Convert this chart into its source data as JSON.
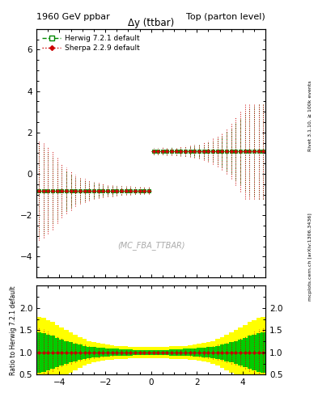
{
  "title_left": "1960 GeV ppbar",
  "title_right": "Top (parton level)",
  "plot_title": "Δy (t̄tbar)",
  "ylabel_ratio": "Ratio to Herwig 7.2.1 default",
  "watermark": "(MC_FBA_TTBAR)",
  "right_label": "Rivet 3.1.10, ≥ 100k events",
  "right_label2": "mcplots.cern.ch [arXiv:1306.3436]",
  "xlim": [
    -5.0,
    5.0
  ],
  "ylim_main": [
    -5.0,
    7.0
  ],
  "ylim_ratio": [
    0.5,
    2.5
  ],
  "yticks_main": [
    -4,
    -2,
    0,
    2,
    4,
    6
  ],
  "yticks_ratio": [
    0.5,
    1.0,
    1.5,
    2.0
  ],
  "xticks": [
    -4,
    -2,
    0,
    2,
    4
  ],
  "herwig_color": "#008800",
  "sherpa_color": "#cc0000",
  "sherpa_fill_color": "#ff9999",
  "herwig_label": "Herwig 7.2.1 default",
  "sherpa_label": "Sherpa 2.2.9 default",
  "band_color_green": "#00bb00",
  "band_color_yellow": "#ffff00",
  "bg_color": "#ffffff",
  "x_edges": [
    -5.0,
    -4.8,
    -4.6,
    -4.4,
    -4.2,
    -4.0,
    -3.8,
    -3.6,
    -3.4,
    -3.2,
    -3.0,
    -2.8,
    -2.6,
    -2.4,
    -2.2,
    -2.0,
    -1.8,
    -1.6,
    -1.4,
    -1.2,
    -1.0,
    -0.8,
    -0.6,
    -0.4,
    -0.2,
    0.0,
    0.2,
    0.4,
    0.6,
    0.8,
    1.0,
    1.2,
    1.4,
    1.6,
    1.8,
    2.0,
    2.2,
    2.4,
    2.6,
    2.8,
    3.0,
    3.2,
    3.4,
    3.6,
    3.8,
    4.0,
    4.2,
    4.4,
    4.6,
    4.8,
    5.0
  ],
  "herwig_vals": [
    -0.8,
    -0.8,
    -0.8,
    -0.8,
    -0.8,
    -0.8,
    -0.8,
    -0.8,
    -0.8,
    -0.8,
    -0.8,
    -0.8,
    -0.8,
    -0.8,
    -0.8,
    -0.8,
    -0.8,
    -0.8,
    -0.8,
    -0.8,
    -0.8,
    -0.8,
    -0.8,
    -0.8,
    -0.8,
    1.1,
    1.1,
    1.1,
    1.1,
    1.1,
    1.1,
    1.1,
    1.1,
    1.1,
    1.1,
    1.1,
    1.1,
    1.1,
    1.1,
    1.1,
    1.1,
    1.1,
    1.1,
    1.1,
    1.1,
    1.1,
    1.1,
    1.1,
    1.1,
    1.1
  ],
  "herwig_errs": [
    2.2,
    2.1,
    1.9,
    1.6,
    1.4,
    1.1,
    0.95,
    0.8,
    0.65,
    0.55,
    0.48,
    0.42,
    0.37,
    0.33,
    0.3,
    0.27,
    0.25,
    0.23,
    0.21,
    0.19,
    0.18,
    0.17,
    0.16,
    0.15,
    0.15,
    0.15,
    0.15,
    0.16,
    0.17,
    0.18,
    0.19,
    0.21,
    0.23,
    0.25,
    0.27,
    0.3,
    0.35,
    0.42,
    0.52,
    0.62,
    0.75,
    0.95,
    1.1,
    1.4,
    1.6,
    1.9,
    2.1,
    2.2,
    2.3,
    2.3
  ],
  "sherpa_vals": [
    -0.8,
    -0.8,
    -0.8,
    -0.8,
    -0.8,
    -0.8,
    -0.8,
    -0.8,
    -0.8,
    -0.8,
    -0.8,
    -0.8,
    -0.8,
    -0.8,
    -0.8,
    -0.8,
    -0.8,
    -0.8,
    -0.8,
    -0.8,
    -0.8,
    -0.8,
    -0.8,
    -0.8,
    -0.8,
    1.1,
    1.1,
    1.1,
    1.1,
    1.1,
    1.1,
    1.1,
    1.1,
    1.1,
    1.1,
    1.1,
    1.1,
    1.1,
    1.1,
    1.1,
    1.1,
    1.1,
    1.1,
    1.1,
    1.1,
    1.1,
    1.1,
    1.1,
    1.1,
    1.1
  ],
  "sherpa_errs": [
    2.4,
    2.3,
    2.1,
    1.9,
    1.6,
    1.3,
    1.1,
    0.95,
    0.75,
    0.65,
    0.55,
    0.48,
    0.42,
    0.37,
    0.33,
    0.3,
    0.28,
    0.25,
    0.23,
    0.21,
    0.2,
    0.19,
    0.18,
    0.17,
    0.17,
    0.17,
    0.17,
    0.18,
    0.19,
    0.2,
    0.21,
    0.23,
    0.25,
    0.28,
    0.31,
    0.35,
    0.42,
    0.52,
    0.62,
    0.75,
    0.9,
    1.1,
    1.35,
    1.65,
    1.95,
    2.3,
    2.3,
    2.3,
    2.3,
    2.3
  ],
  "ratio_errs_stat": [
    0.55,
    0.52,
    0.47,
    0.42,
    0.37,
    0.32,
    0.28,
    0.25,
    0.22,
    0.19,
    0.17,
    0.15,
    0.13,
    0.11,
    0.095,
    0.082,
    0.072,
    0.063,
    0.056,
    0.051,
    0.047,
    0.044,
    0.042,
    0.041,
    0.04,
    0.04,
    0.041,
    0.042,
    0.044,
    0.047,
    0.051,
    0.056,
    0.063,
    0.072,
    0.082,
    0.095,
    0.11,
    0.13,
    0.15,
    0.17,
    0.19,
    0.22,
    0.25,
    0.28,
    0.32,
    0.37,
    0.42,
    0.47,
    0.52,
    0.55
  ],
  "ratio_band_green_lo": [
    0.55,
    0.57,
    0.6,
    0.63,
    0.67,
    0.71,
    0.74,
    0.77,
    0.8,
    0.83,
    0.85,
    0.87,
    0.88,
    0.89,
    0.9,
    0.91,
    0.92,
    0.92,
    0.93,
    0.93,
    0.93,
    0.94,
    0.94,
    0.94,
    0.94,
    0.94,
    0.94,
    0.94,
    0.94,
    0.93,
    0.93,
    0.93,
    0.92,
    0.92,
    0.91,
    0.9,
    0.89,
    0.88,
    0.87,
    0.85,
    0.83,
    0.8,
    0.77,
    0.74,
    0.71,
    0.67,
    0.63,
    0.6,
    0.57,
    0.55
  ],
  "ratio_band_green_hi": [
    1.45,
    1.43,
    1.4,
    1.37,
    1.33,
    1.29,
    1.26,
    1.23,
    1.2,
    1.17,
    1.15,
    1.13,
    1.12,
    1.11,
    1.1,
    1.09,
    1.08,
    1.08,
    1.07,
    1.07,
    1.07,
    1.06,
    1.06,
    1.06,
    1.06,
    1.06,
    1.06,
    1.06,
    1.06,
    1.07,
    1.07,
    1.07,
    1.08,
    1.08,
    1.09,
    1.1,
    1.11,
    1.12,
    1.13,
    1.15,
    1.17,
    1.2,
    1.23,
    1.26,
    1.29,
    1.33,
    1.37,
    1.4,
    1.43,
    1.45
  ],
  "ratio_band_yellow_lo": [
    0.2,
    0.23,
    0.27,
    0.32,
    0.38,
    0.44,
    0.5,
    0.55,
    0.6,
    0.66,
    0.7,
    0.74,
    0.77,
    0.79,
    0.81,
    0.83,
    0.84,
    0.85,
    0.86,
    0.86,
    0.87,
    0.87,
    0.87,
    0.87,
    0.87,
    0.87,
    0.87,
    0.87,
    0.87,
    0.86,
    0.86,
    0.86,
    0.85,
    0.84,
    0.83,
    0.81,
    0.79,
    0.77,
    0.74,
    0.7,
    0.66,
    0.6,
    0.55,
    0.5,
    0.44,
    0.38,
    0.32,
    0.27,
    0.23,
    0.2
  ],
  "ratio_band_yellow_hi": [
    1.8,
    1.77,
    1.73,
    1.68,
    1.62,
    1.56,
    1.5,
    1.45,
    1.4,
    1.34,
    1.3,
    1.26,
    1.23,
    1.21,
    1.19,
    1.17,
    1.16,
    1.15,
    1.14,
    1.14,
    1.13,
    1.13,
    1.13,
    1.13,
    1.13,
    1.13,
    1.13,
    1.13,
    1.13,
    1.14,
    1.14,
    1.14,
    1.15,
    1.16,
    1.17,
    1.19,
    1.21,
    1.23,
    1.26,
    1.3,
    1.34,
    1.4,
    1.45,
    1.5,
    1.56,
    1.62,
    1.68,
    1.73,
    1.77,
    1.8
  ]
}
